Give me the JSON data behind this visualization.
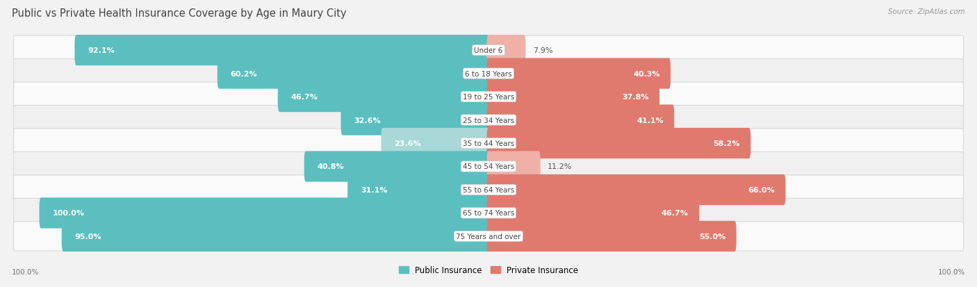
{
  "title": "Public vs Private Health Insurance Coverage by Age in Maury City",
  "source": "Source: ZipAtlas.com",
  "categories": [
    "Under 6",
    "6 to 18 Years",
    "19 to 25 Years",
    "25 to 34 Years",
    "35 to 44 Years",
    "45 to 54 Years",
    "55 to 64 Years",
    "65 to 74 Years",
    "75 Years and over"
  ],
  "public_values": [
    92.1,
    60.2,
    46.7,
    32.6,
    23.6,
    40.8,
    31.1,
    100.0,
    95.0
  ],
  "private_values": [
    7.9,
    40.3,
    37.8,
    41.1,
    58.2,
    11.2,
    66.0,
    46.7,
    55.0
  ],
  "public_color": "#5bbfbf",
  "private_color": "#e07a6e",
  "public_color_light": "#a8d8d8",
  "private_color_light": "#f0b0a8",
  "public_label": "Public Insurance",
  "private_label": "Private Insurance",
  "bg_color": "#f2f2f2",
  "row_color_even": "#fafafa",
  "row_color_odd": "#f0f0f0",
  "max_val": 100.0,
  "title_fontsize": 10.5,
  "source_fontsize": 7.5,
  "label_fontsize": 7.5,
  "value_fontsize": 8.0,
  "axis_label": "100.0%",
  "white_text_threshold": 18
}
